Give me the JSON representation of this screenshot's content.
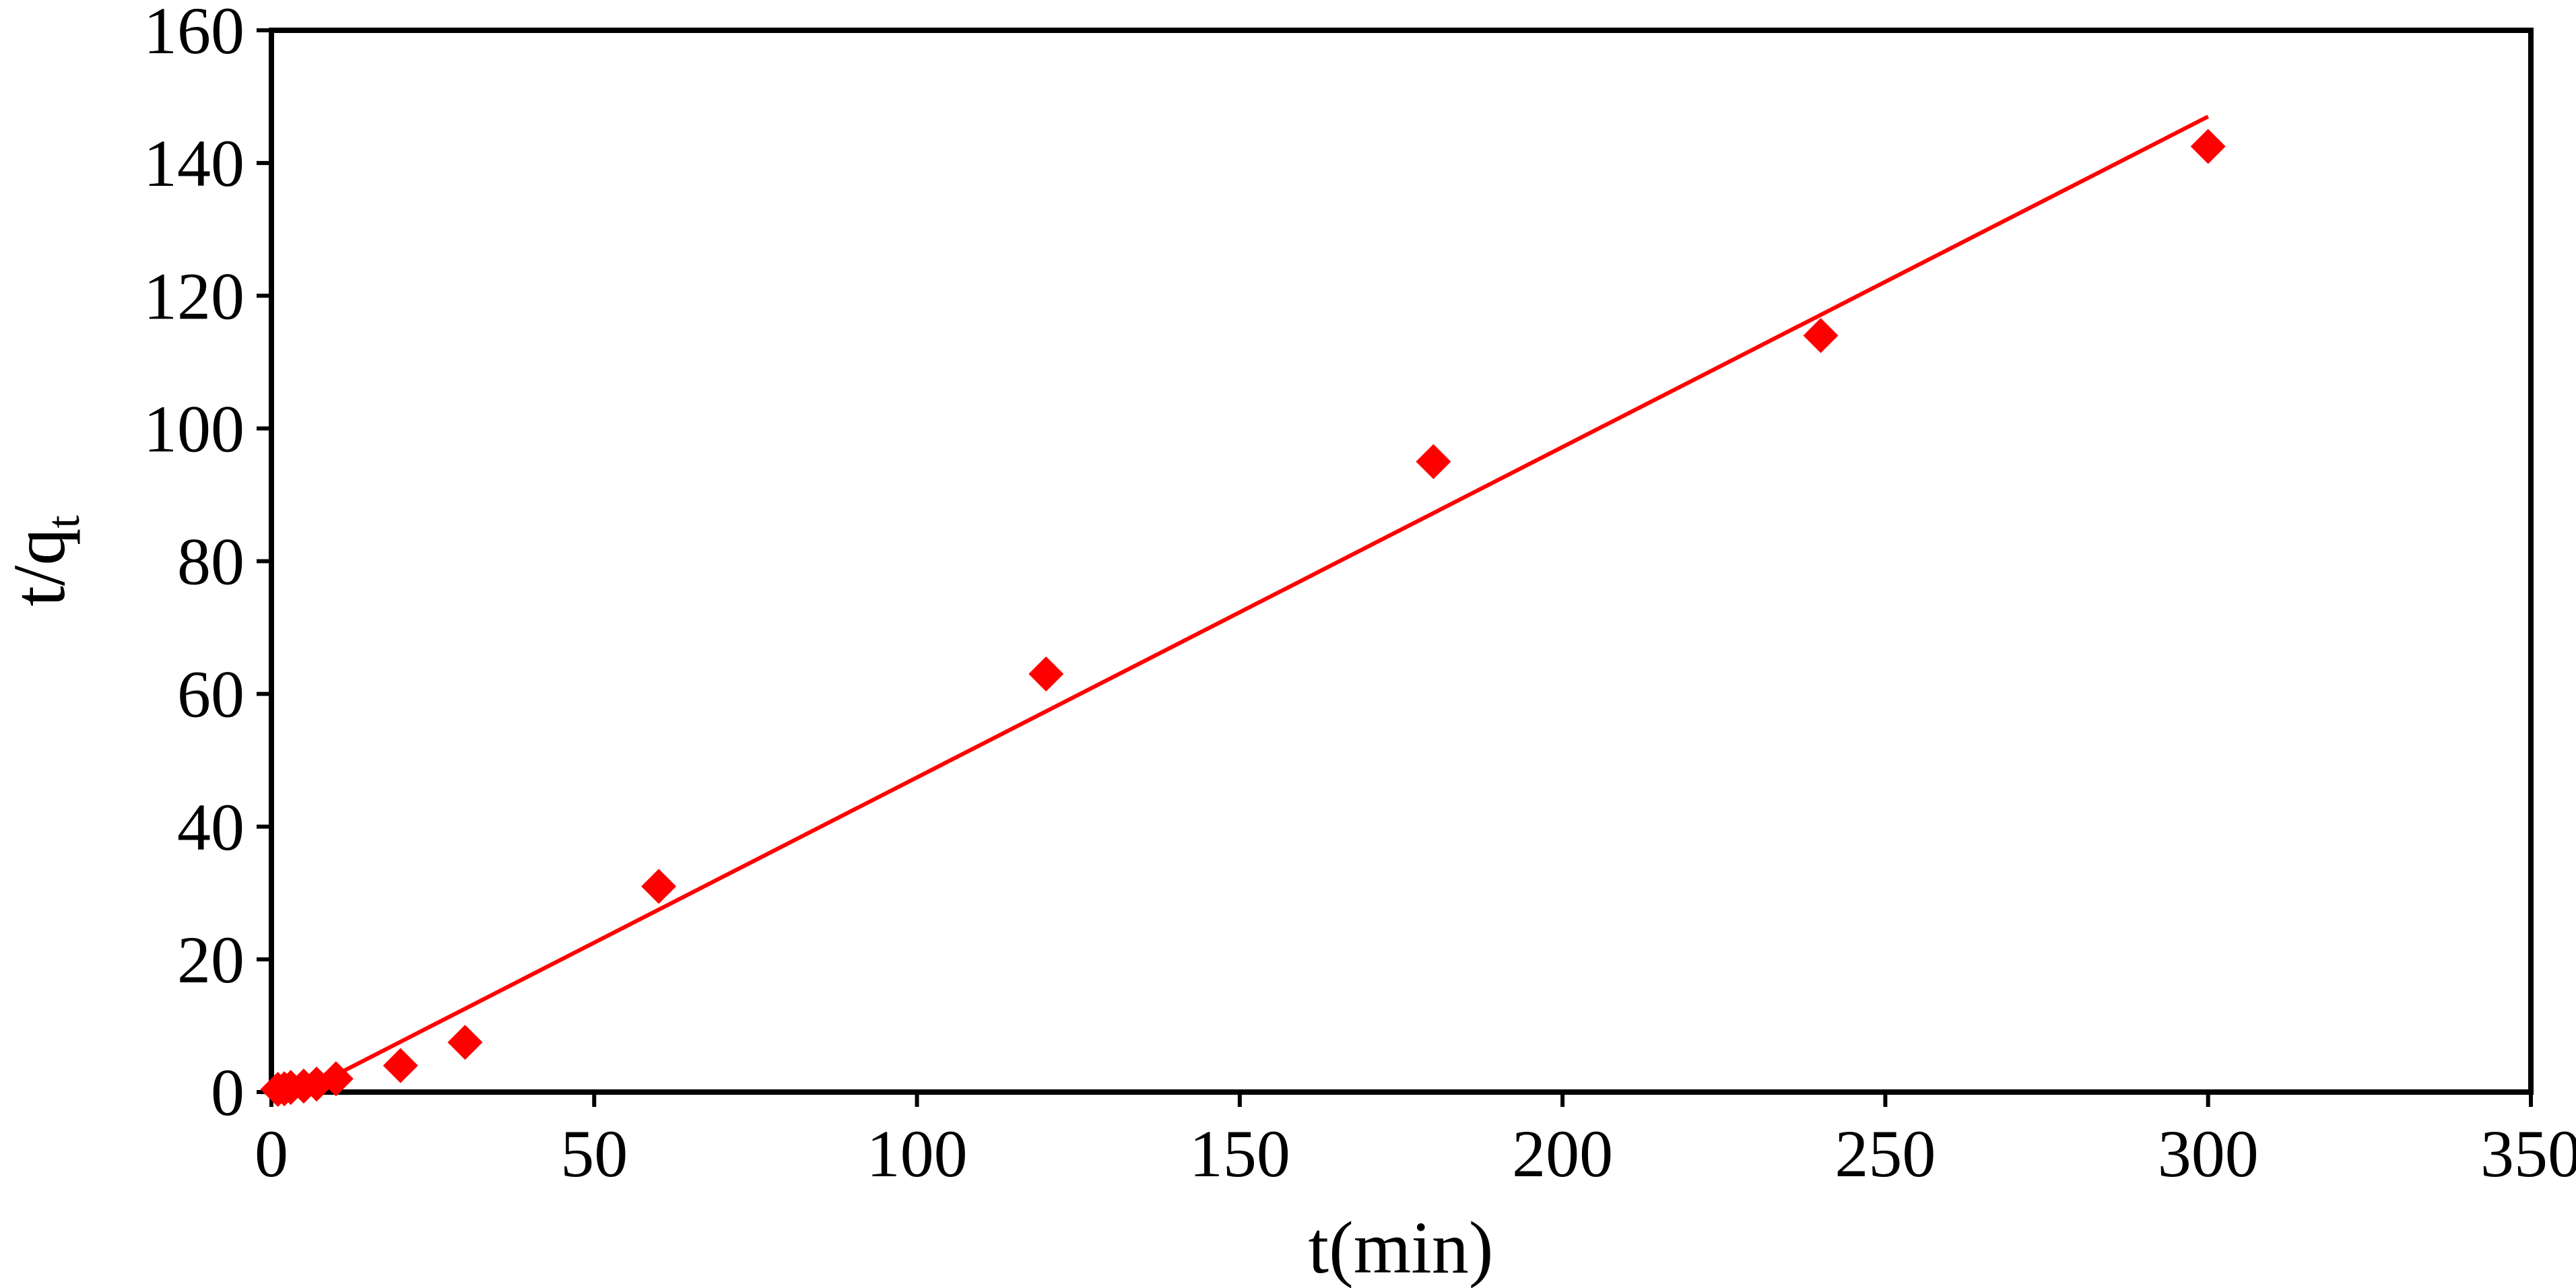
{
  "chart_data": {
    "type": "scatter",
    "xlabel": "t(min)",
    "ylabel_main": "t/q",
    "ylabel_sub": "t",
    "xlim": [
      0,
      350
    ],
    "ylim": [
      0,
      160
    ],
    "xticks": [
      0,
      50,
      100,
      150,
      200,
      250,
      300,
      350
    ],
    "yticks": [
      0,
      20,
      40,
      60,
      80,
      100,
      120,
      140,
      160
    ],
    "grid": false,
    "legend": "none",
    "marker_color": "#ff0000",
    "line_color": "#ff0000",
    "series": [
      {
        "kind": "points",
        "marker": "diamond",
        "x": [
          1,
          2,
          3,
          5,
          7,
          10,
          20,
          30,
          60,
          120,
          180,
          240,
          300
        ],
        "y": [
          0.4,
          0.5,
          0.7,
          0.9,
          1.2,
          2.0,
          4.0,
          7.5,
          31,
          63,
          95,
          114,
          142.5
        ]
      },
      {
        "kind": "fit-line",
        "x": [
          10,
          300
        ],
        "y": [
          2.6,
          147
        ]
      }
    ]
  }
}
